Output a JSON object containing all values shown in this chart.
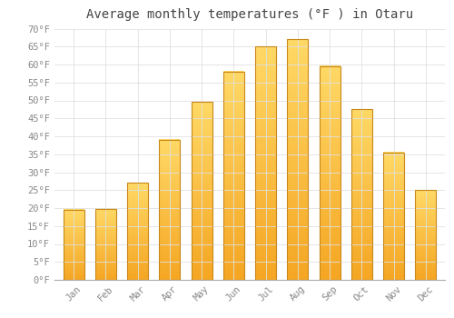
{
  "title": "Average monthly temperatures (°F ) in Otaru",
  "months": [
    "Jan",
    "Feb",
    "Mar",
    "Apr",
    "May",
    "Jun",
    "Jul",
    "Aug",
    "Sep",
    "Oct",
    "Nov",
    "Dec"
  ],
  "values": [
    19.5,
    19.8,
    27.0,
    39.0,
    49.5,
    58.0,
    65.0,
    67.0,
    59.5,
    47.5,
    35.5,
    25.0
  ],
  "bar_color_bottom": "#F5A623",
  "bar_color_top": "#FFD966",
  "bar_edge_color": "#C8881A",
  "background_color": "#FFFFFF",
  "grid_color": "#E0E0E0",
  "text_color": "#888888",
  "ylim": [
    0,
    70
  ],
  "yticks": [
    0,
    5,
    10,
    15,
    20,
    25,
    30,
    35,
    40,
    45,
    50,
    55,
    60,
    65,
    70
  ],
  "ylabel_suffix": "°F",
  "title_fontsize": 10,
  "tick_fontsize": 7.5,
  "font_family": "monospace"
}
